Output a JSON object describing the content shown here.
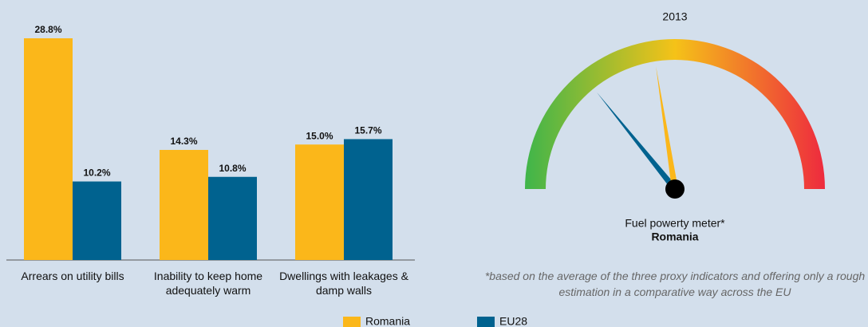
{
  "chart_data": [
    {
      "type": "bar",
      "categories": [
        "Arrears on utility bills",
        "Inability to keep home adequately warm",
        "Dwellings with leakages & damp walls"
      ],
      "series": [
        {
          "name": "Romania",
          "color": "#fbb71a",
          "values": [
            28.8,
            14.3,
            15.0
          ],
          "value_labels": [
            "28.8%",
            "14.3%",
            "15.0%"
          ]
        },
        {
          "name": "EU28",
          "color": "#00628f",
          "values": [
            10.2,
            10.8,
            15.7
          ],
          "value_labels": [
            "10.2%",
            "10.8%",
            "15.7%"
          ]
        }
      ],
      "legend": "bottom"
    },
    {
      "type": "gauge",
      "title": "2013",
      "label": "Fuel powerty meter*",
      "sublabel": "Romania",
      "note": "*based on the average of the three proxy indicators and offering only a rough estimation in a comparative way across the EU",
      "ylim": [
        0,
        43
      ],
      "colors": [
        "#3fb54a",
        "#f5c218",
        "#ee2a3e"
      ],
      "series": [
        {
          "color": "#00628f",
          "values": [
            12.2
          ]
        },
        {
          "color": "#fbb71a",
          "values": [
            19.4
          ]
        }
      ]
    }
  ]
}
